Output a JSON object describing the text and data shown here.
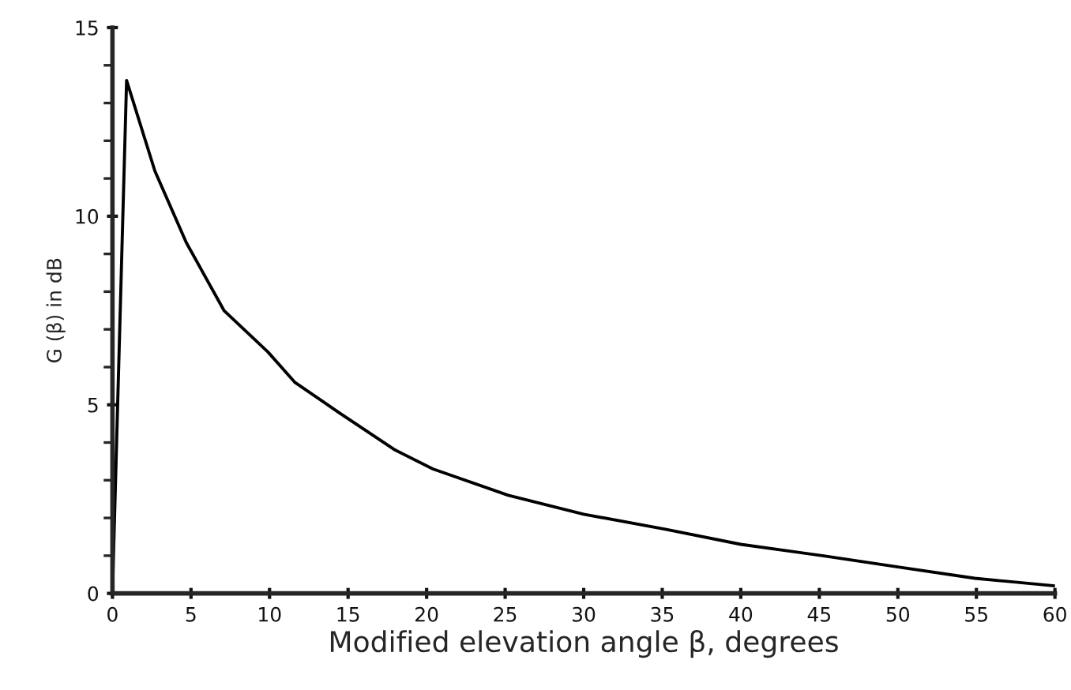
{
  "chart_data": {
    "type": "line",
    "xlabel": "Modified elevation angle β, degrees",
    "ylabel": "G (β) in dB",
    "series": [
      {
        "color": "#000000",
        "x": [
          0,
          0.9,
          2.7,
          4.7,
          7.1,
          9.9,
          11.6,
          14.4,
          18,
          20.4,
          25.2,
          30,
          35.2,
          40,
          45.2,
          50,
          54.9,
          60
        ],
        "values": [
          0,
          13.6,
          11.2,
          9.3,
          7.5,
          6.4,
          5.6,
          4.8,
          3.8,
          3.3,
          2.6,
          2.1,
          1.7,
          1.3,
          1.0,
          0.7,
          0.4,
          0.2
        ]
      }
    ],
    "xlim": [
      0,
      60
    ],
    "xticks": [
      0,
      5,
      10,
      15,
      20,
      25,
      30,
      35,
      40,
      45,
      50,
      55,
      60
    ],
    "ylim": [
      0,
      15
    ],
    "yticks": [
      0,
      5,
      10,
      15
    ],
    "grid": false,
    "legend": false,
    "marker": "none",
    "line_style": "solid"
  }
}
